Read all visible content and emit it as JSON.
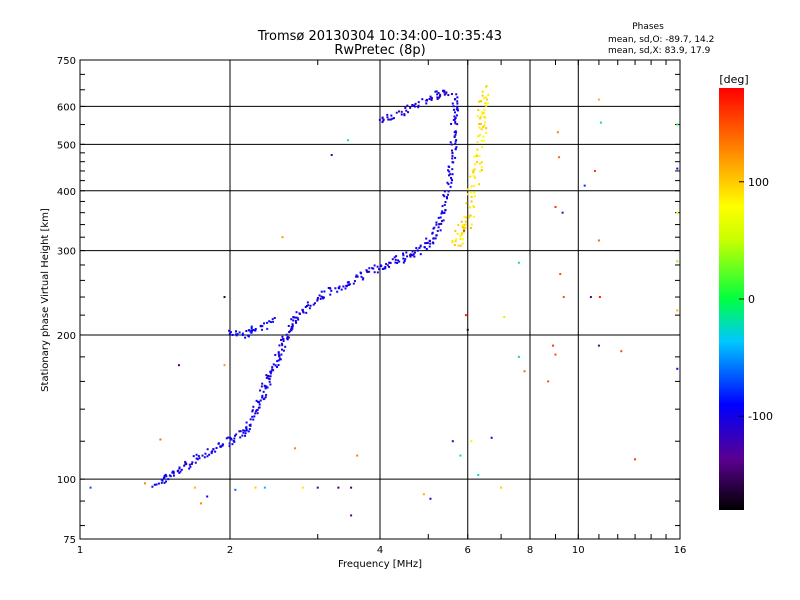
{
  "chart_data": {
    "type": "scatter",
    "title": "Tromsø 20130304 10:34:00–10:35:43",
    "subtitle": "RwPretec (8p)",
    "info": {
      "heading": "Phases",
      "line_o": "mean, sd,O: -89.7, 14.2",
      "line_x": "mean, sd,X: 83.9, 17.9"
    },
    "xlabel": "Frequency [MHz]",
    "ylabel": "Stationary phase Virtual Height [km]",
    "x_scale": "log",
    "y_scale": "log",
    "xlim": [
      1,
      16
    ],
    "ylim": [
      75,
      750
    ],
    "x_ticks": [
      1,
      2,
      4,
      6,
      8,
      10,
      16
    ],
    "x_tick_labels": [
      "1",
      "2",
      "4",
      "6",
      "8",
      "10",
      "16"
    ],
    "y_ticks": [
      75,
      100,
      200,
      300,
      400,
      500,
      600,
      750
    ],
    "y_tick_labels": [
      "75",
      "100",
      "200",
      "300",
      "400",
      "500",
      "600",
      "750"
    ],
    "x_gridlines": [
      2,
      4,
      6,
      8,
      10
    ],
    "y_gridlines": [
      100,
      200,
      300,
      400,
      500,
      600
    ],
    "grid": true,
    "colorbar": {
      "label": "[deg]",
      "range": [
        -180,
        180
      ],
      "ticks": [
        100,
        0,
        -100
      ],
      "tick_labels": [
        "100",
        "0",
        "-100"
      ]
    },
    "series": [
      {
        "name": "O",
        "phase_deg": -100,
        "trace": [
          [
            1.42,
            98
          ],
          [
            1.48,
            100
          ],
          [
            1.55,
            103
          ],
          [
            1.62,
            106
          ],
          [
            1.7,
            110
          ],
          [
            1.8,
            114
          ],
          [
            1.9,
            117
          ],
          [
            2.0,
            120
          ],
          [
            2.08,
            122
          ],
          [
            2.15,
            127
          ],
          [
            2.2,
            132
          ],
          [
            2.25,
            140
          ],
          [
            2.3,
            147
          ],
          [
            2.35,
            155
          ],
          [
            2.4,
            163
          ],
          [
            2.45,
            172
          ],
          [
            2.5,
            180
          ],
          [
            2.55,
            190
          ],
          [
            2.6,
            200
          ],
          [
            2.65,
            210
          ],
          [
            2.7,
            216
          ],
          [
            2.8,
            225
          ],
          [
            2.95,
            235
          ],
          [
            3.1,
            243
          ],
          [
            3.3,
            250
          ],
          [
            3.5,
            258
          ],
          [
            3.7,
            266
          ],
          [
            3.9,
            273
          ],
          [
            4.1,
            280
          ],
          [
            4.3,
            285
          ],
          [
            4.5,
            290
          ],
          [
            4.7,
            297
          ],
          [
            4.9,
            305
          ],
          [
            5.05,
            315
          ],
          [
            5.2,
            330
          ],
          [
            5.3,
            350
          ],
          [
            5.4,
            375
          ],
          [
            5.5,
            410
          ],
          [
            5.55,
            440
          ],
          [
            5.6,
            480
          ],
          [
            5.63,
            520
          ],
          [
            5.65,
            560
          ],
          [
            5.65,
            600
          ],
          [
            5.62,
            640
          ]
        ]
      },
      {
        "name": "X",
        "phase_deg": 90,
        "trace": [
          [
            5.7,
            310
          ],
          [
            5.8,
            320
          ],
          [
            5.9,
            335
          ],
          [
            6.0,
            350
          ],
          [
            6.1,
            380
          ],
          [
            6.2,
            420
          ],
          [
            6.3,
            460
          ],
          [
            6.35,
            500
          ],
          [
            6.4,
            540
          ],
          [
            6.42,
            580
          ],
          [
            6.45,
            620
          ],
          [
            6.5,
            640
          ]
        ]
      },
      {
        "name": "",
        "phase_deg": -95,
        "trace": [
          [
            2.0,
            205
          ],
          [
            2.1,
            200
          ],
          [
            2.2,
            203
          ],
          [
            2.3,
            207
          ],
          [
            2.45,
            214
          ]
        ]
      },
      {
        "name": "",
        "phase_deg": -105,
        "trace": [
          [
            4.0,
            565
          ],
          [
            4.2,
            570
          ],
          [
            4.5,
            585
          ],
          [
            4.8,
            610
          ],
          [
            5.1,
            630
          ],
          [
            5.3,
            640
          ],
          [
            5.5,
            645
          ]
        ]
      }
    ],
    "scatter_points": [
      {
        "x": 1.05,
        "y": 96,
        "phase": -70
      },
      {
        "x": 1.35,
        "y": 98,
        "phase": 130
      },
      {
        "x": 1.45,
        "y": 121,
        "phase": 140
      },
      {
        "x": 1.58,
        "y": 173,
        "phase": -140
      },
      {
        "x": 1.7,
        "y": 96,
        "phase": 110
      },
      {
        "x": 1.75,
        "y": 89,
        "phase": 130
      },
      {
        "x": 1.8,
        "y": 92,
        "phase": -100
      },
      {
        "x": 1.95,
        "y": 240,
        "phase": -160
      },
      {
        "x": 1.95,
        "y": 173,
        "phase": 120
      },
      {
        "x": 2.05,
        "y": 95,
        "phase": -60
      },
      {
        "x": 2.25,
        "y": 96,
        "phase": 100
      },
      {
        "x": 2.35,
        "y": 96,
        "phase": -40
      },
      {
        "x": 2.55,
        "y": 320,
        "phase": 120
      },
      {
        "x": 2.7,
        "y": 116,
        "phase": 130
      },
      {
        "x": 2.8,
        "y": 96,
        "phase": 90
      },
      {
        "x": 3.0,
        "y": 96,
        "phase": -120
      },
      {
        "x": 3.2,
        "y": 475,
        "phase": -120
      },
      {
        "x": 3.3,
        "y": 96,
        "phase": -150
      },
      {
        "x": 3.45,
        "y": 510,
        "phase": -10
      },
      {
        "x": 3.5,
        "y": 96,
        "phase": -150
      },
      {
        "x": 3.6,
        "y": 112,
        "phase": 130
      },
      {
        "x": 3.5,
        "y": 84,
        "phase": -140
      },
      {
        "x": 4.9,
        "y": 93,
        "phase": 110
      },
      {
        "x": 5.05,
        "y": 91,
        "phase": -100
      },
      {
        "x": 5.6,
        "y": 120,
        "phase": -120
      },
      {
        "x": 5.8,
        "y": 112,
        "phase": -10
      },
      {
        "x": 5.9,
        "y": 330,
        "phase": 160
      },
      {
        "x": 5.95,
        "y": 220,
        "phase": 170
      },
      {
        "x": 6.0,
        "y": 205,
        "phase": -170
      },
      {
        "x": 6.1,
        "y": 120,
        "phase": 60
      },
      {
        "x": 6.3,
        "y": 102,
        "phase": -30
      },
      {
        "x": 6.7,
        "y": 122,
        "phase": -100
      },
      {
        "x": 7.0,
        "y": 96,
        "phase": 100
      },
      {
        "x": 7.1,
        "y": 218,
        "phase": 50
      },
      {
        "x": 7.6,
        "y": 283,
        "phase": -10
      },
      {
        "x": 7.6,
        "y": 180,
        "phase": -20
      },
      {
        "x": 7.8,
        "y": 168,
        "phase": 140
      },
      {
        "x": 8.7,
        "y": 160,
        "phase": 150
      },
      {
        "x": 8.9,
        "y": 190,
        "phase": 160
      },
      {
        "x": 9.0,
        "y": 370,
        "phase": 160
      },
      {
        "x": 9.0,
        "y": 182,
        "phase": 150
      },
      {
        "x": 9.1,
        "y": 530,
        "phase": 130
      },
      {
        "x": 9.15,
        "y": 470,
        "phase": 140
      },
      {
        "x": 9.2,
        "y": 268,
        "phase": 150
      },
      {
        "x": 9.3,
        "y": 360,
        "phase": -130
      },
      {
        "x": 9.35,
        "y": 240,
        "phase": 150
      },
      {
        "x": 10.3,
        "y": 410,
        "phase": -80
      },
      {
        "x": 10.6,
        "y": 240,
        "phase": -140
      },
      {
        "x": 10.8,
        "y": 440,
        "phase": 160
      },
      {
        "x": 11.0,
        "y": 620,
        "phase": 110
      },
      {
        "x": 11.0,
        "y": 315,
        "phase": 140
      },
      {
        "x": 11.05,
        "y": 240,
        "phase": 170
      },
      {
        "x": 11.0,
        "y": 190,
        "phase": -130
      },
      {
        "x": 11.1,
        "y": 555,
        "phase": -20
      },
      {
        "x": 12.2,
        "y": 185,
        "phase": 150
      },
      {
        "x": 13.0,
        "y": 110,
        "phase": 160
      },
      {
        "x": 15.8,
        "y": 550,
        "phase": 10
      },
      {
        "x": 15.8,
        "y": 445,
        "phase": -100
      },
      {
        "x": 15.8,
        "y": 360,
        "phase": 70
      },
      {
        "x": 15.8,
        "y": 285,
        "phase": 30
      },
      {
        "x": 15.8,
        "y": 225,
        "phase": 110
      },
      {
        "x": 15.8,
        "y": 170,
        "phase": -100
      }
    ]
  }
}
